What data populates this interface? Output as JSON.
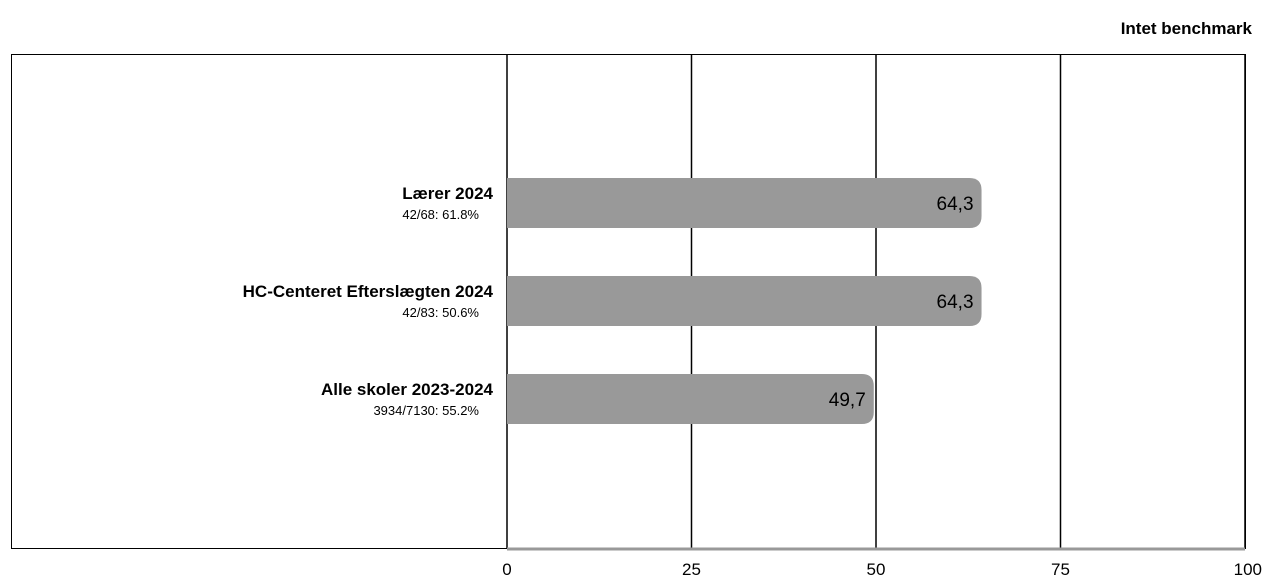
{
  "benchmark_label": "Intet benchmark",
  "chart_data": {
    "type": "bar",
    "orientation": "horizontal",
    "xlim": [
      0,
      100
    ],
    "x_ticks": [
      "0",
      "25",
      "50",
      "75",
      "100"
    ],
    "grid": true,
    "categories": [
      {
        "name": "Lærer 2024",
        "sub": "42/68: 61.8%",
        "value": 64.3,
        "label": "64,3"
      },
      {
        "name": "HC-Centeret Efterslægten 2024",
        "sub": "42/83: 50.6%",
        "value": 64.3,
        "label": "64,3"
      },
      {
        "name": "Alle skoler 2023-2024",
        "sub": "3934/7130: 55.2%",
        "value": 49.7,
        "label": "49,7"
      }
    ],
    "colors": {
      "bar": "#999999",
      "grid": "#000000",
      "axis": "#999999"
    }
  }
}
